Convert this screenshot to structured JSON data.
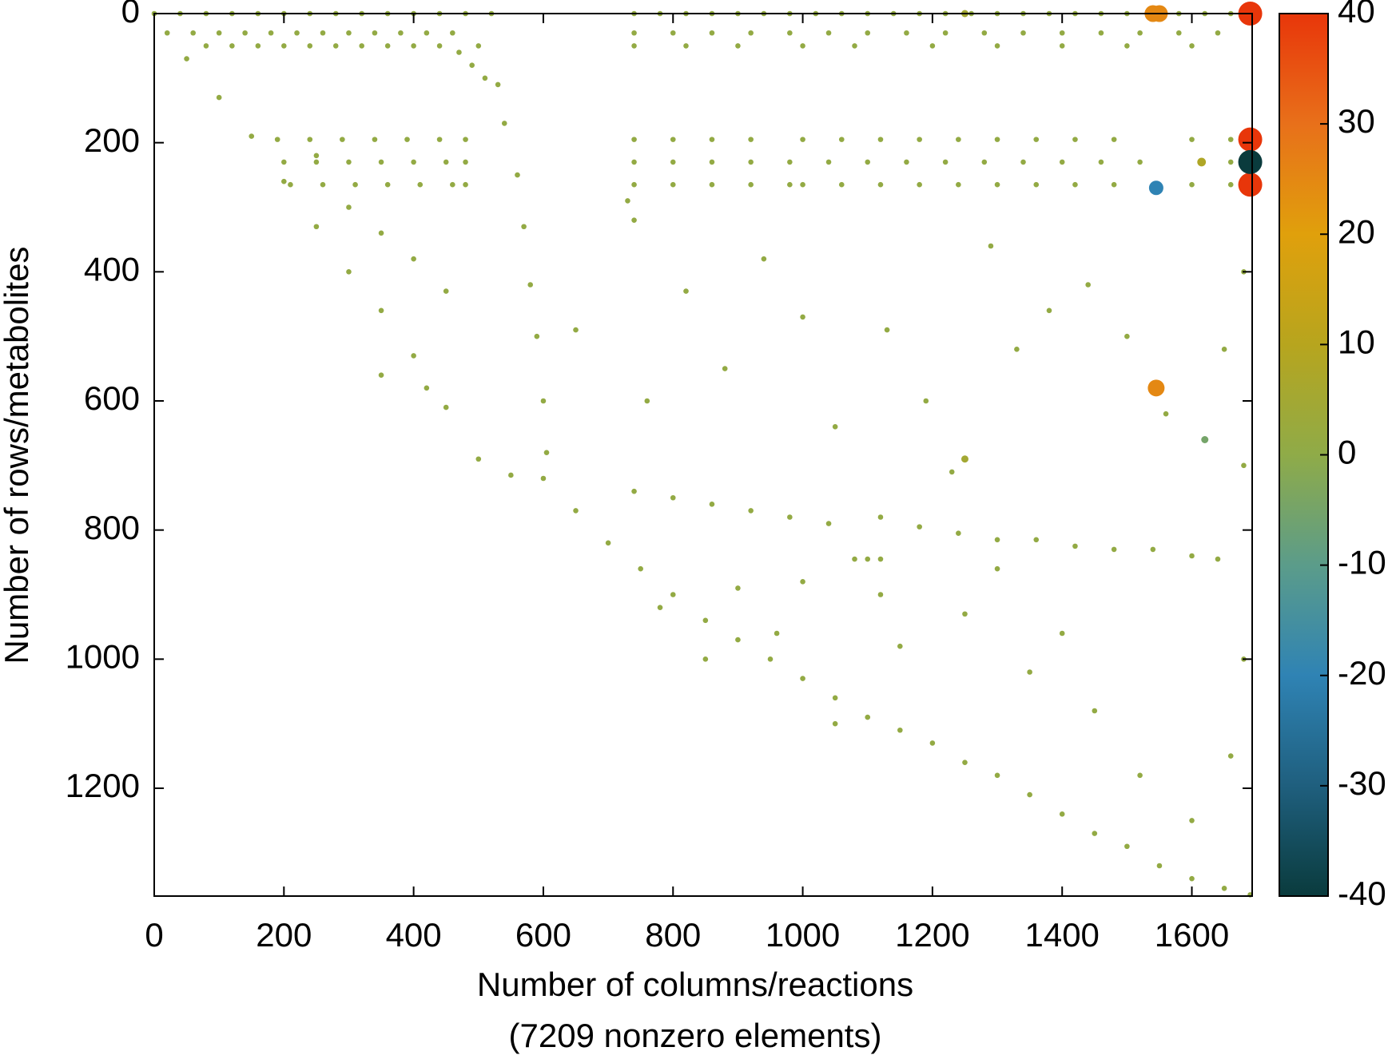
{
  "chart_data": {
    "type": "sparsity",
    "xlabel": [
      "Number of columns/reactions",
      "(7209 nonzero elements)"
    ],
    "ylabel": "Number of rows/metabolites",
    "xlim": [
      0,
      1693
    ],
    "ylim": [
      1367,
      0
    ],
    "clim": [
      -40,
      40
    ],
    "xticks": [
      0,
      200,
      400,
      600,
      800,
      1000,
      1200,
      1400,
      1600
    ],
    "yticks": [
      0,
      200,
      400,
      600,
      800,
      1000,
      1200
    ],
    "cticks": [
      -40,
      -30,
      -20,
      -10,
      0,
      10,
      20,
      30,
      40
    ],
    "colormap": [
      "#0a3b3d",
      "#1f5f7e",
      "#2f83b4",
      "#5b9c8a",
      "#8fab48",
      "#b7a51e",
      "#e0a00c",
      "#e8701a",
      "#e8360a"
    ],
    "points": [
      [
        0,
        0,
        1
      ],
      [
        20,
        30,
        1
      ],
      [
        50,
        70,
        1
      ],
      [
        100,
        130,
        1
      ],
      [
        150,
        190,
        1
      ],
      [
        200,
        260,
        1
      ],
      [
        250,
        330,
        1
      ],
      [
        300,
        400,
        1
      ],
      [
        350,
        460,
        1
      ],
      [
        400,
        530,
        1
      ],
      [
        450,
        610,
        1
      ],
      [
        500,
        690,
        1
      ],
      [
        550,
        715,
        1
      ],
      [
        600,
        720,
        1
      ],
      [
        650,
        770,
        1
      ],
      [
        700,
        820,
        1
      ],
      [
        750,
        860,
        1
      ],
      [
        800,
        900,
        1
      ],
      [
        850,
        940,
        1
      ],
      [
        900,
        970,
        1
      ],
      [
        950,
        1000,
        1
      ],
      [
        1000,
        1030,
        1
      ],
      [
        1050,
        1060,
        1
      ],
      [
        1100,
        1090,
        1
      ],
      [
        1150,
        1110,
        1
      ],
      [
        1200,
        1130,
        1
      ],
      [
        1250,
        1160,
        1
      ],
      [
        1300,
        1180,
        1
      ],
      [
        1350,
        1210,
        1
      ],
      [
        1400,
        1240,
        1
      ],
      [
        1450,
        1270,
        1
      ],
      [
        1500,
        1290,
        1
      ],
      [
        1550,
        1320,
        1
      ],
      [
        1600,
        1340,
        1
      ],
      [
        1650,
        1355,
        1
      ],
      [
        1690,
        1365,
        1
      ],
      [
        40,
        0,
        1
      ],
      [
        80,
        0,
        1
      ],
      [
        120,
        0,
        1
      ],
      [
        160,
        0,
        1
      ],
      [
        200,
        0,
        1
      ],
      [
        240,
        0,
        1
      ],
      [
        280,
        0,
        1
      ],
      [
        320,
        0,
        1
      ],
      [
        360,
        0,
        1
      ],
      [
        400,
        0,
        1
      ],
      [
        440,
        0,
        1
      ],
      [
        480,
        0,
        1
      ],
      [
        520,
        0,
        1
      ],
      [
        740,
        0,
        1
      ],
      [
        780,
        0,
        1
      ],
      [
        820,
        0,
        1
      ],
      [
        860,
        0,
        1
      ],
      [
        900,
        0,
        1
      ],
      [
        940,
        0,
        1
      ],
      [
        980,
        0,
        1
      ],
      [
        1020,
        0,
        1
      ],
      [
        1060,
        0,
        1
      ],
      [
        1100,
        0,
        1
      ],
      [
        1140,
        0,
        1
      ],
      [
        1180,
        0,
        1
      ],
      [
        1220,
        0,
        1
      ],
      [
        1260,
        0,
        1
      ],
      [
        1300,
        0,
        1
      ],
      [
        1340,
        0,
        1
      ],
      [
        1380,
        0,
        1
      ],
      [
        1420,
        0,
        1
      ],
      [
        1460,
        0,
        1
      ],
      [
        1500,
        0,
        1
      ],
      [
        1580,
        0,
        1
      ],
      [
        1620,
        0,
        1
      ],
      [
        1660,
        0,
        1
      ],
      [
        60,
        30,
        1
      ],
      [
        100,
        30,
        1
      ],
      [
        140,
        30,
        1
      ],
      [
        180,
        30,
        1
      ],
      [
        220,
        30,
        1
      ],
      [
        260,
        30,
        1
      ],
      [
        300,
        30,
        1
      ],
      [
        340,
        30,
        1
      ],
      [
        380,
        30,
        1
      ],
      [
        420,
        30,
        1
      ],
      [
        460,
        30,
        1
      ],
      [
        740,
        30,
        1
      ],
      [
        800,
        30,
        1
      ],
      [
        860,
        30,
        1
      ],
      [
        920,
        30,
        1
      ],
      [
        980,
        30,
        1
      ],
      [
        1040,
        30,
        1
      ],
      [
        1100,
        30,
        1
      ],
      [
        1160,
        30,
        1
      ],
      [
        1220,
        30,
        1
      ],
      [
        1280,
        30,
        1
      ],
      [
        1340,
        30,
        1
      ],
      [
        1400,
        30,
        1
      ],
      [
        1460,
        30,
        1
      ],
      [
        1520,
        30,
        1
      ],
      [
        1580,
        30,
        1
      ],
      [
        1640,
        30,
        1
      ],
      [
        80,
        50,
        1
      ],
      [
        120,
        50,
        1
      ],
      [
        160,
        50,
        1
      ],
      [
        200,
        50,
        1
      ],
      [
        240,
        50,
        1
      ],
      [
        280,
        50,
        1
      ],
      [
        320,
        50,
        1
      ],
      [
        360,
        50,
        1
      ],
      [
        400,
        50,
        1
      ],
      [
        440,
        50,
        1
      ],
      [
        500,
        50,
        1
      ],
      [
        740,
        50,
        1
      ],
      [
        820,
        50,
        1
      ],
      [
        900,
        50,
        1
      ],
      [
        1000,
        50,
        1
      ],
      [
        1080,
        50,
        1
      ],
      [
        1200,
        50,
        1
      ],
      [
        1300,
        50,
        1
      ],
      [
        1400,
        50,
        1
      ],
      [
        1500,
        50,
        1
      ],
      [
        1600,
        50,
        1
      ],
      [
        190,
        195,
        1
      ],
      [
        240,
        195,
        1
      ],
      [
        290,
        195,
        1
      ],
      [
        340,
        195,
        1
      ],
      [
        390,
        195,
        1
      ],
      [
        440,
        195,
        1
      ],
      [
        480,
        195,
        1
      ],
      [
        740,
        195,
        1
      ],
      [
        800,
        195,
        1
      ],
      [
        860,
        195,
        1
      ],
      [
        920,
        195,
        1
      ],
      [
        1000,
        195,
        1
      ],
      [
        1060,
        195,
        1
      ],
      [
        1120,
        195,
        1
      ],
      [
        1180,
        195,
        1
      ],
      [
        1240,
        195,
        1
      ],
      [
        1300,
        195,
        1
      ],
      [
        1360,
        195,
        1
      ],
      [
        1420,
        195,
        1
      ],
      [
        1480,
        195,
        1
      ],
      [
        1600,
        195,
        1
      ],
      [
        1660,
        195,
        1
      ],
      [
        200,
        230,
        1
      ],
      [
        250,
        230,
        1
      ],
      [
        300,
        230,
        1
      ],
      [
        350,
        230,
        1
      ],
      [
        400,
        230,
        1
      ],
      [
        450,
        230,
        1
      ],
      [
        480,
        230,
        1
      ],
      [
        740,
        230,
        1
      ],
      [
        800,
        230,
        1
      ],
      [
        860,
        230,
        1
      ],
      [
        920,
        230,
        1
      ],
      [
        980,
        230,
        1
      ],
      [
        1040,
        230,
        1
      ],
      [
        1100,
        230,
        1
      ],
      [
        1160,
        230,
        1
      ],
      [
        1220,
        230,
        1
      ],
      [
        1280,
        230,
        1
      ],
      [
        1340,
        230,
        1
      ],
      [
        1400,
        230,
        1
      ],
      [
        1460,
        230,
        1
      ],
      [
        1520,
        230,
        1
      ],
      [
        1660,
        230,
        1
      ],
      [
        210,
        265,
        1
      ],
      [
        260,
        265,
        1
      ],
      [
        310,
        265,
        1
      ],
      [
        360,
        265,
        1
      ],
      [
        410,
        265,
        1
      ],
      [
        460,
        265,
        1
      ],
      [
        480,
        265,
        1
      ],
      [
        740,
        265,
        1
      ],
      [
        800,
        265,
        1
      ],
      [
        860,
        265,
        1
      ],
      [
        920,
        265,
        1
      ],
      [
        980,
        265,
        1
      ],
      [
        1000,
        265,
        1
      ],
      [
        1060,
        265,
        1
      ],
      [
        1120,
        265,
        1
      ],
      [
        1180,
        265,
        1
      ],
      [
        1240,
        265,
        1
      ],
      [
        1300,
        265,
        1
      ],
      [
        1360,
        265,
        1
      ],
      [
        1420,
        265,
        1
      ],
      [
        1480,
        265,
        1
      ],
      [
        1600,
        265,
        1
      ],
      [
        1660,
        265,
        1
      ],
      [
        470,
        60,
        1
      ],
      [
        490,
        80,
        1
      ],
      [
        510,
        100,
        1
      ],
      [
        530,
        110,
        1
      ],
      [
        540,
        170,
        1
      ],
      [
        560,
        250,
        1
      ],
      [
        570,
        330,
        1
      ],
      [
        580,
        420,
        1
      ],
      [
        590,
        500,
        1
      ],
      [
        600,
        600,
        1
      ],
      [
        605,
        680,
        1
      ],
      [
        740,
        740,
        1
      ],
      [
        800,
        750,
        1
      ],
      [
        860,
        760,
        1
      ],
      [
        920,
        770,
        1
      ],
      [
        980,
        780,
        1
      ],
      [
        1040,
        790,
        1
      ],
      [
        1120,
        780,
        1
      ],
      [
        1180,
        795,
        1
      ],
      [
        1240,
        805,
        1
      ],
      [
        1300,
        815,
        1
      ],
      [
        1360,
        815,
        1
      ],
      [
        1420,
        825,
        1
      ],
      [
        1480,
        830,
        1
      ],
      [
        1540,
        830,
        1
      ],
      [
        1600,
        840,
        1
      ],
      [
        1640,
        845,
        1
      ],
      [
        730,
        290,
        1
      ],
      [
        740,
        320,
        1
      ],
      [
        1080,
        845,
        1
      ],
      [
        1100,
        845,
        1
      ],
      [
        1120,
        845,
        1
      ],
      [
        350,
        560,
        1
      ],
      [
        420,
        580,
        1
      ],
      [
        650,
        490,
        1
      ],
      [
        760,
        600,
        1
      ],
      [
        820,
        430,
        1
      ],
      [
        880,
        550,
        1
      ],
      [
        940,
        380,
        1
      ],
      [
        1000,
        470,
        1
      ],
      [
        1050,
        640,
        1
      ],
      [
        1130,
        490,
        1
      ],
      [
        1190,
        600,
        1
      ],
      [
        1230,
        710,
        1
      ],
      [
        1290,
        360,
        1
      ],
      [
        1330,
        520,
        1
      ],
      [
        1380,
        460,
        1
      ],
      [
        1440,
        420,
        1
      ],
      [
        1500,
        500,
        1
      ],
      [
        1560,
        620,
        1
      ],
      [
        1650,
        520,
        1
      ],
      [
        900,
        890,
        1
      ],
      [
        960,
        960,
        1
      ],
      [
        1050,
        1100,
        1
      ],
      [
        1150,
        980,
        1
      ],
      [
        1250,
        930,
        1
      ],
      [
        1350,
        1020,
        1
      ],
      [
        1450,
        1080,
        1
      ],
      [
        1520,
        1180,
        1
      ],
      [
        1600,
        1250,
        1
      ],
      [
        1660,
        1150,
        1
      ],
      [
        780,
        920,
        1
      ],
      [
        850,
        1000,
        1
      ],
      [
        1000,
        880,
        1
      ],
      [
        1120,
        900,
        1
      ],
      [
        1300,
        860,
        1
      ],
      [
        1400,
        960,
        1
      ],
      [
        300,
        300,
        1
      ],
      [
        350,
        340,
        1
      ],
      [
        400,
        380,
        1
      ],
      [
        250,
        220,
        1
      ],
      [
        450,
        430,
        1
      ],
      [
        1680,
        700,
        1
      ],
      [
        1680,
        400,
        1
      ],
      [
        1680,
        1000,
        1
      ],
      [
        1250,
        0,
        5
      ],
      [
        1250,
        690,
        5
      ],
      [
        1615,
        230,
        8
      ],
      [
        1620,
        660,
        -5
      ],
      [
        1540,
        0,
        25
      ],
      [
        1550,
        0,
        25
      ],
      [
        1545,
        580,
        25
      ],
      [
        1545,
        270,
        -20
      ],
      [
        1690,
        0,
        40
      ],
      [
        1690,
        195,
        40
      ],
      [
        1690,
        265,
        40
      ],
      [
        1690,
        230,
        -40
      ]
    ]
  }
}
